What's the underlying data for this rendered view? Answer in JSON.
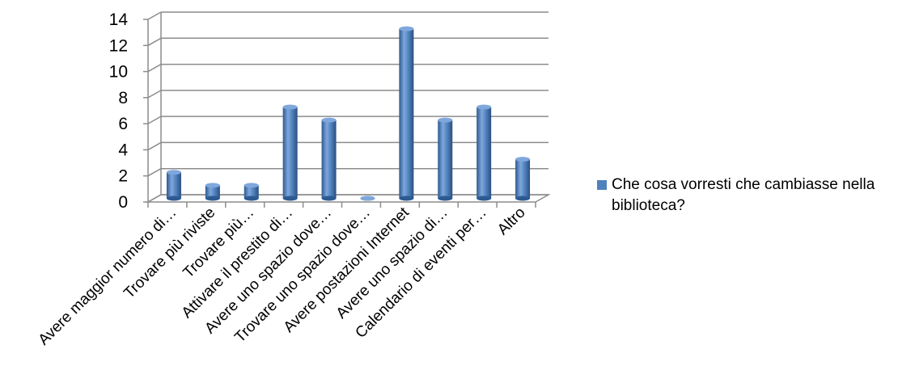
{
  "chart_data": {
    "type": "bar",
    "style": "3d-cylinder",
    "categories": [
      "Avere maggior numero di…",
      "Trovare più riviste",
      "Trovare più…",
      "Attivare il prestito di…",
      "Avere uno spazio dove…",
      "Trovare uno spazio dove…",
      "Avere postazioni Internet",
      "Avere uno spazio di…",
      "Calendario di eventi per…",
      "Altro"
    ],
    "series": [
      {
        "name": "Che cosa vorresti che cambiasse nella biblioteca?",
        "values": [
          2,
          1,
          1,
          7,
          6,
          0,
          13,
          6,
          7,
          3
        ]
      }
    ],
    "ylim": [
      0,
      14
    ],
    "yticks": [
      0,
      2,
      4,
      6,
      8,
      10,
      12,
      14
    ],
    "grid": true,
    "legend_position": "right",
    "colors": {
      "bar": "#4f81bd",
      "bar_dark": "#2c5a91",
      "bar_light": "#7fa7dc",
      "grid": "#8c8c8c"
    }
  }
}
